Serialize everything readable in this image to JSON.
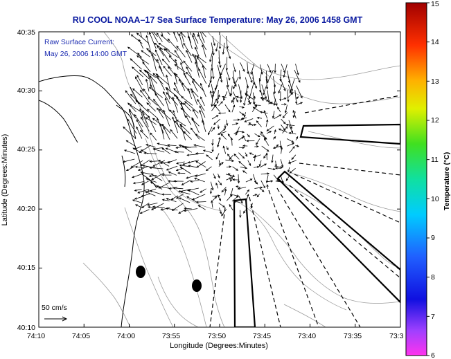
{
  "title": "RU COOL  NOAA–17  Sea Surface Temperature:  May 26, 2006 1458 GMT",
  "annotation": {
    "line1": "Raw Surface Current:",
    "line2": "May 26, 2006 14:00 GMT"
  },
  "scale_label": "50 cm/s",
  "x_axis": {
    "label": "Longitude (Degrees:Minutes)",
    "ticks": [
      "74:10",
      "74:05",
      "74:00",
      "73:55",
      "73:50",
      "73:45",
      "73:40",
      "73:35",
      "73:3"
    ]
  },
  "y_axis": {
    "label": "Latitude (Degrees:Minutes)",
    "ticks": [
      "40:35",
      "40:30",
      "40:25",
      "40:20",
      "40:15",
      "40:10"
    ]
  },
  "colorbar": {
    "label": "Temperature (°C)",
    "ticks": [
      "15",
      "14",
      "13",
      "12",
      "11",
      "10",
      "9",
      "8",
      "7",
      "6"
    ],
    "min": 6,
    "max": 15
  },
  "colors": {
    "title": "#0a1aa0",
    "annotation": "#1a2ab0",
    "vectors": "#000000",
    "bathymetry": "#9a9a9a"
  }
}
